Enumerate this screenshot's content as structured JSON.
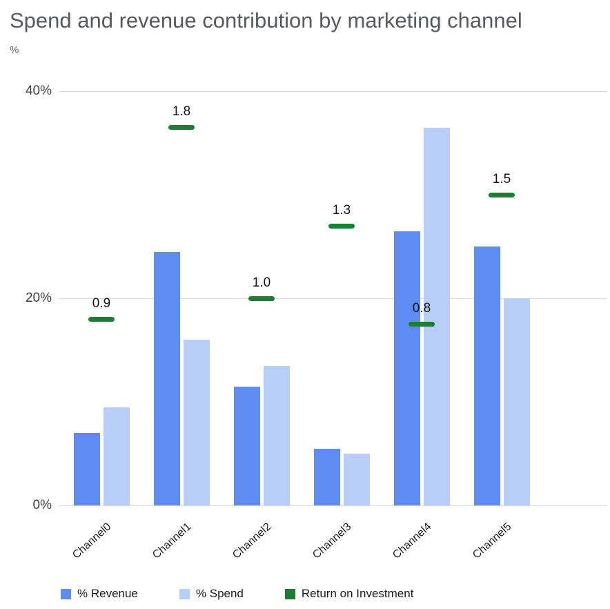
{
  "chart_data": {
    "type": "bar",
    "title": "Spend and revenue contribution by marketing channel",
    "ylabel": "%",
    "xlabel": "",
    "ylim": [
      0,
      40
    ],
    "grid": true,
    "legend_position": "bottom",
    "yticks": [
      {
        "label": "40%",
        "value": 40
      },
      {
        "label": "20%",
        "value": 20
      },
      {
        "label": "0%",
        "value": 0
      }
    ],
    "categories": [
      "Channel0",
      "Channel1",
      "Channel2",
      "Channel3",
      "Channel4",
      "Channel5"
    ],
    "series": [
      {
        "name": "% Revenue",
        "color": "#5e8cf2",
        "values": [
          7,
          24.5,
          11.5,
          5.5,
          26.5,
          25
        ]
      },
      {
        "name": "% Spend",
        "color": "#b8cdf8",
        "values": [
          9.5,
          16,
          13.5,
          5,
          36.5,
          20
        ]
      }
    ],
    "roi_series": {
      "name": "Return on Investment",
      "color": "#1d7d35",
      "values": [
        0.9,
        1.8,
        1.0,
        1.3,
        0.8,
        1.5
      ],
      "labels": [
        "0.9",
        "1.8",
        "1.0",
        "1.3",
        "0.8",
        "1.5"
      ],
      "marker_pct_on_y_axis": [
        18,
        36.5,
        20,
        27,
        17.5,
        30
      ],
      "axis_max": 2.0
    }
  },
  "legend": {
    "items": [
      {
        "label": "% Revenue",
        "color": "#5e8cf2"
      },
      {
        "label": "% Spend",
        "color": "#b8cdf8"
      },
      {
        "label": "Return on Investment",
        "color": "#1d7d35"
      }
    ]
  }
}
